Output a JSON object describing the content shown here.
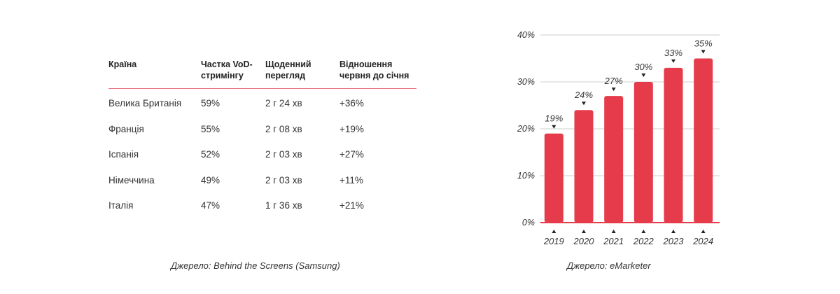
{
  "table": {
    "headers": [
      "Країна",
      "Частка VoD-стримінгу",
      "Щоденний перегляд",
      "Відношення червня до січня"
    ],
    "header_lines": [
      [
        "Країна"
      ],
      [
        "Частка VoD-",
        "стримінгу"
      ],
      [
        "Щоденний",
        "перегляд"
      ],
      [
        "Відношення",
        "червня до січня"
      ]
    ],
    "rows": [
      [
        "Велика Британія",
        "59%",
        "2 г 24 хв",
        "+36%"
      ],
      [
        "Франція",
        "55%",
        "2 г 08 хв",
        "+19%"
      ],
      [
        "Іспанія",
        "52%",
        "2 г 03 хв",
        "+27%"
      ],
      [
        "Німеччина",
        "49%",
        "2 г 03 хв",
        "+11%"
      ],
      [
        "Італія",
        "47%",
        "1 г 36 хв",
        "+21%"
      ]
    ],
    "source": "Джерело: Behind the Screens (Samsung)",
    "accent_color": "#e8707f"
  },
  "chart_data": {
    "type": "bar",
    "categories": [
      "2019",
      "2020",
      "2021",
      "2022",
      "2023",
      "2024"
    ],
    "values": [
      19,
      24,
      27,
      30,
      33,
      35
    ],
    "data_labels": [
      "19%",
      "24%",
      "27%",
      "30%",
      "33%",
      "35%"
    ],
    "yticks": [
      "0%",
      "10%",
      "20%",
      "30%",
      "40%"
    ],
    "ylim": [
      0,
      40
    ],
    "grid": true,
    "title": "",
    "xlabel": "",
    "ylabel": "",
    "bar_color": "#e63b4a",
    "source": "Джерело: eMarketer"
  }
}
